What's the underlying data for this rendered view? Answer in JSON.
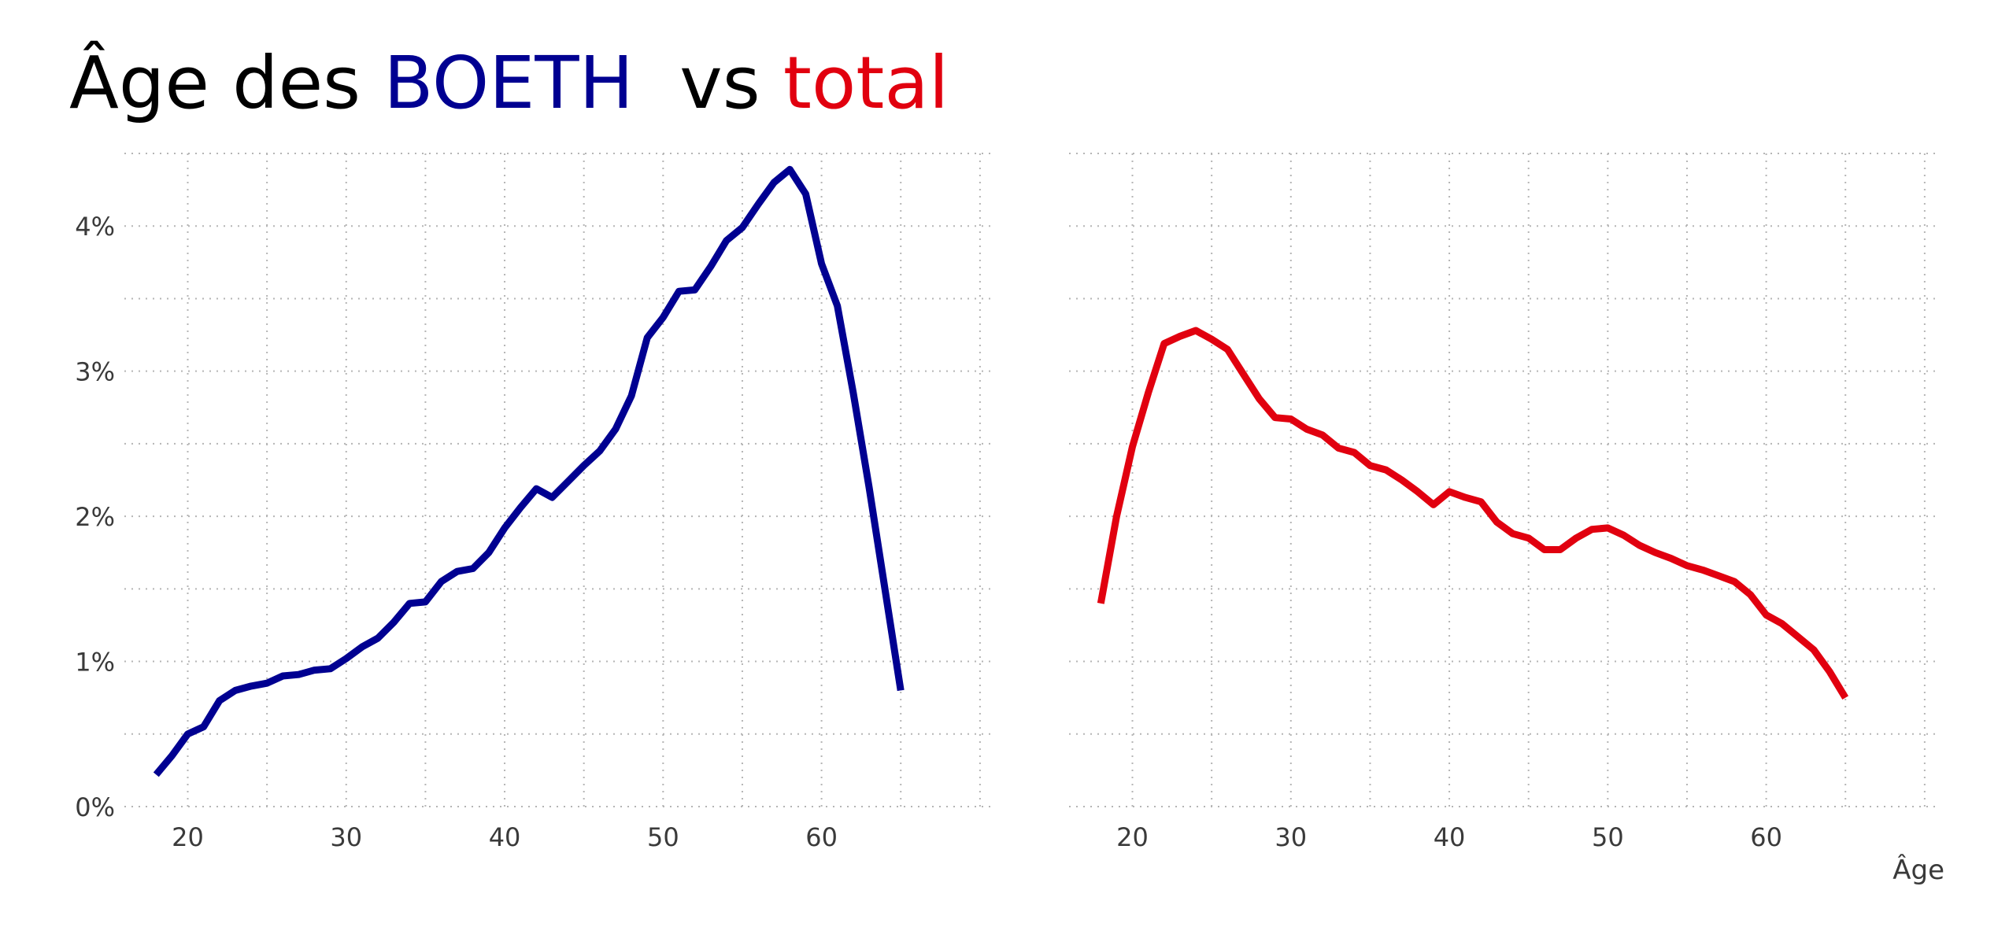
{
  "title": {
    "prefix": "Âge des ",
    "boeth": "BOETH",
    "middle": "  vs ",
    "total": "total"
  },
  "colors": {
    "boeth": "#000091",
    "total": "#e1000f",
    "text": "#000000",
    "grid": "#b5b5b5"
  },
  "chart_data": [
    {
      "type": "line",
      "title": "",
      "xlabel": "",
      "ylabel": "",
      "xlim": [
        16,
        71
      ],
      "ylim": [
        0,
        4.5
      ],
      "x_ticks": [
        20,
        30,
        40,
        50,
        60
      ],
      "y_ticks": [
        0,
        1,
        2,
        3,
        4
      ],
      "y_tick_labels": [
        "0%",
        "1%",
        "2%",
        "3%",
        "4%"
      ],
      "grid": true,
      "series": [
        {
          "color": "#000091",
          "x": [
            18,
            19,
            20,
            21,
            22,
            23,
            24,
            25,
            26,
            27,
            28,
            29,
            30,
            31,
            32,
            33,
            34,
            35,
            36,
            37,
            38,
            39,
            40,
            41,
            42,
            43,
            44,
            45,
            46,
            47,
            48,
            49,
            50,
            51,
            52,
            53,
            54,
            55,
            56,
            57,
            58,
            59,
            60,
            61,
            62,
            63,
            64,
            65
          ],
          "y": [
            0.22,
            0.35,
            0.5,
            0.55,
            0.73,
            0.8,
            0.83,
            0.85,
            0.9,
            0.91,
            0.94,
            0.95,
            1.02,
            1.1,
            1.16,
            1.27,
            1.4,
            1.41,
            1.55,
            1.62,
            1.64,
            1.75,
            1.92,
            2.06,
            2.19,
            2.13,
            2.24,
            2.35,
            2.45,
            2.6,
            2.83,
            3.23,
            3.37,
            3.55,
            3.56,
            3.72,
            3.9,
            3.99,
            4.15,
            4.3,
            4.39,
            4.22,
            3.74,
            3.45,
            2.85,
            2.2,
            1.5,
            0.8
          ]
        }
      ]
    },
    {
      "type": "line",
      "title": "",
      "xlabel": "Âge",
      "ylabel": "",
      "xlim": [
        16,
        71
      ],
      "ylim": [
        0,
        4.5
      ],
      "x_ticks": [
        20,
        30,
        40,
        50,
        60
      ],
      "grid": true,
      "series": [
        {
          "color": "#e1000f",
          "x": [
            18,
            19,
            20,
            21,
            22,
            23,
            24,
            25,
            26,
            27,
            28,
            29,
            30,
            31,
            32,
            33,
            34,
            35,
            36,
            37,
            38,
            39,
            40,
            41,
            42,
            43,
            44,
            45,
            46,
            47,
            48,
            49,
            50,
            51,
            52,
            53,
            54,
            55,
            56,
            57,
            58,
            59,
            60,
            61,
            62,
            63,
            64,
            65
          ],
          "y": [
            1.4,
            2.0,
            2.48,
            2.85,
            3.19,
            3.24,
            3.28,
            3.22,
            3.15,
            2.98,
            2.81,
            2.68,
            2.67,
            2.6,
            2.56,
            2.47,
            2.44,
            2.35,
            2.32,
            2.25,
            2.17,
            2.08,
            2.17,
            2.13,
            2.1,
            1.96,
            1.88,
            1.85,
            1.77,
            1.77,
            1.85,
            1.91,
            1.92,
            1.87,
            1.8,
            1.75,
            1.71,
            1.66,
            1.63,
            1.59,
            1.55,
            1.46,
            1.32,
            1.26,
            1.17,
            1.08,
            0.93,
            0.75
          ]
        }
      ]
    }
  ]
}
